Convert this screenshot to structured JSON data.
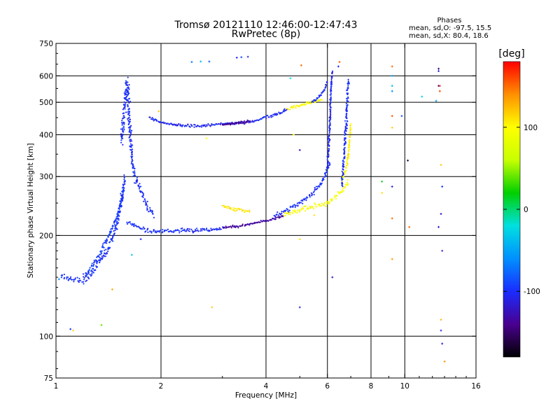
{
  "chart_data": {
    "type": "scatter",
    "title": "Tromsø 20121110 12:46:00-12:47:43",
    "subtitle": "RwPretec (8p)",
    "xlabel": "Frequency [MHz]",
    "ylabel": "Stationary phase Virtual Height [km]",
    "x_scale": "log",
    "y_scale": "log",
    "xlim": [
      1,
      16
    ],
    "ylim": [
      75,
      750
    ],
    "x_ticks": [
      1,
      2,
      4,
      6,
      8,
      10,
      16
    ],
    "x_tick_labels": [
      "1",
      "2",
      "4",
      "6",
      "8",
      "10",
      "16"
    ],
    "y_ticks": [
      75,
      100,
      200,
      300,
      400,
      500,
      600,
      750
    ],
    "y_tick_labels": [
      "75",
      "100",
      "200",
      "300",
      "400",
      "500",
      "600",
      "750"
    ],
    "x_grid": [
      2,
      4,
      6,
      8,
      10
    ],
    "y_grid": [
      100,
      200,
      300,
      400,
      500,
      600
    ],
    "grid": true,
    "stats_header": "Phases",
    "stats_lines": [
      "mean, sd,O: -97.5, 15.5",
      "mean, sd,X: 80.4, 18.6"
    ],
    "colorbar": {
      "label": "[deg]",
      "range": [
        -180,
        180
      ],
      "ticks": [
        100,
        0,
        -100
      ],
      "tick_labels": [
        "100",
        "0",
        "-100"
      ]
    },
    "color_stops": [
      "#000000",
      "#4a0090",
      "#1a2cff",
      "#0090ff",
      "#00e0e0",
      "#00d000",
      "#c8ff00",
      "#ffff00",
      "#ff9000",
      "#ff0000"
    ],
    "traces": [
      {
        "x": [
          1.03,
          1.07,
          1.15,
          1.2,
          1.25,
          1.3,
          1.35,
          1.4,
          1.45,
          1.5,
          1.53,
          1.56
        ],
        "y": [
          152,
          150,
          146,
          147,
          152,
          160,
          170,
          180,
          195,
          215,
          245,
          280
        ],
        "v": -100,
        "spread": 0.035
      },
      {
        "x": [
          1.2,
          1.25,
          1.3,
          1.35,
          1.4,
          1.45,
          1.5,
          1.55,
          1.58
        ],
        "y": [
          150,
          158,
          168,
          180,
          195,
          210,
          230,
          260,
          300
        ],
        "v": -95,
        "spread": 0.03
      },
      {
        "x": [
          1.54,
          1.56,
          1.58,
          1.6,
          1.62,
          1.65,
          1.7,
          1.8,
          1.9
        ],
        "y": [
          380,
          450,
          520,
          580,
          470,
          340,
          290,
          255,
          230
        ],
        "v": -100,
        "spread": 0.045
      },
      {
        "x": [
          1.6,
          1.7,
          1.8,
          1.9,
          2.0,
          2.2,
          2.4,
          2.6,
          2.8,
          3.0
        ],
        "y": [
          220,
          212,
          208,
          206,
          206,
          207,
          207,
          208,
          208,
          210
        ],
        "v": -100,
        "spread": 0.02
      },
      {
        "x": [
          3.0,
          3.3,
          3.6,
          3.9,
          4.2,
          4.5
        ],
        "y": [
          211,
          213,
          216,
          220,
          224,
          228
        ],
        "v": -135,
        "spread": 0.012
      },
      {
        "x": [
          4.2,
          4.6,
          5.0,
          5.4,
          5.8,
          6.1
        ],
        "y": [
          228,
          238,
          250,
          265,
          290,
          330
        ],
        "v": -100,
        "spread": 0.025
      },
      {
        "x": [
          6.0,
          6.05,
          6.1,
          6.12,
          6.15,
          6.2
        ],
        "y": [
          320,
          370,
          430,
          490,
          560,
          620
        ],
        "v": -105,
        "spread": 0.02
      },
      {
        "x": [
          4.5,
          5.0,
          5.5,
          6.0,
          6.3,
          6.6,
          6.9
        ],
        "y": [
          232,
          238,
          245,
          250,
          260,
          272,
          290
        ],
        "v": 95,
        "spread": 0.028
      },
      {
        "x": [
          6.6,
          6.8,
          6.9,
          6.95,
          7.0
        ],
        "y": [
          290,
          320,
          350,
          390,
          430
        ],
        "v": 105,
        "spread": 0.02
      },
      {
        "x": [
          1.85,
          2.0,
          2.2,
          2.4,
          2.6,
          2.8,
          3.0,
          3.2,
          3.5,
          3.8
        ],
        "y": [
          450,
          435,
          428,
          425,
          425,
          428,
          430,
          432,
          436,
          440
        ],
        "v": -105,
        "spread": 0.012
      },
      {
        "x": [
          3.0,
          3.2,
          3.4,
          3.6
        ],
        "y": [
          428,
          432,
          435,
          440
        ],
        "v": -140,
        "spread": 0.012
      },
      {
        "x": [
          3.8,
          4.1,
          4.4,
          4.6
        ],
        "y": [
          445,
          455,
          465,
          475
        ],
        "v": -100,
        "spread": 0.015
      },
      {
        "x": [
          4.6,
          5.0,
          5.4,
          5.8
        ],
        "y": [
          475,
          490,
          500,
          510
        ],
        "v": 100,
        "spread": 0.015
      },
      {
        "x": [
          5.4,
          5.7,
          5.9,
          6.0
        ],
        "y": [
          500,
          520,
          550,
          580
        ],
        "v": -100,
        "spread": 0.015
      },
      {
        "x": [
          3.0,
          3.2,
          3.4,
          3.6
        ],
        "y": [
          245,
          240,
          238,
          235
        ],
        "v": 110,
        "spread": 0.02
      },
      {
        "x": [
          6.6,
          6.7,
          6.8,
          6.9
        ],
        "y": [
          280,
          350,
          450,
          580
        ],
        "v": -100,
        "spread": 0.03
      }
    ],
    "points": [
      {
        "x": 2.45,
        "y": 660,
        "v": -70
      },
      {
        "x": 2.6,
        "y": 662,
        "v": -40
      },
      {
        "x": 2.75,
        "y": 662,
        "v": -80
      },
      {
        "x": 3.3,
        "y": 680,
        "v": -100
      },
      {
        "x": 3.4,
        "y": 682,
        "v": -90
      },
      {
        "x": 3.55,
        "y": 684,
        "v": -110
      },
      {
        "x": 5.05,
        "y": 645,
        "v": 150
      },
      {
        "x": 4.7,
        "y": 590,
        "v": -20
      },
      {
        "x": 6.5,
        "y": 660,
        "v": 155
      },
      {
        "x": 6.45,
        "y": 640,
        "v": -100
      },
      {
        "x": 5.0,
        "y": 360,
        "v": -130
      },
      {
        "x": 4.8,
        "y": 400,
        "v": 100
      },
      {
        "x": 2.7,
        "y": 390,
        "v": 100
      },
      {
        "x": 2.8,
        "y": 122,
        "v": 120
      },
      {
        "x": 5.0,
        "y": 122,
        "v": -110
      },
      {
        "x": 5.0,
        "y": 195,
        "v": 110
      },
      {
        "x": 5.5,
        "y": 230,
        "v": 110
      },
      {
        "x": 6.2,
        "y": 150,
        "v": -120
      },
      {
        "x": 1.1,
        "y": 105,
        "v": -100
      },
      {
        "x": 1.12,
        "y": 104,
        "v": 115
      },
      {
        "x": 1.35,
        "y": 108,
        "v": 40
      },
      {
        "x": 1.45,
        "y": 138,
        "v": 130
      },
      {
        "x": 1.65,
        "y": 175,
        "v": -30
      },
      {
        "x": 1.75,
        "y": 195,
        "v": -100
      },
      {
        "x": 1.97,
        "y": 470,
        "v": 120
      },
      {
        "x": 1.02,
        "y": 148,
        "v": -60
      },
      {
        "x": 1.0,
        "y": 150,
        "v": -30
      },
      {
        "x": 8.6,
        "y": 290,
        "v": 20
      },
      {
        "x": 8.6,
        "y": 268,
        "v": 110
      },
      {
        "x": 9.2,
        "y": 640,
        "v": 150
      },
      {
        "x": 9.2,
        "y": 600,
        "v": -50
      },
      {
        "x": 9.2,
        "y": 560,
        "v": -40
      },
      {
        "x": 9.2,
        "y": 540,
        "v": -60
      },
      {
        "x": 9.2,
        "y": 455,
        "v": 160
      },
      {
        "x": 9.2,
        "y": 420,
        "v": 120
      },
      {
        "x": 9.2,
        "y": 280,
        "v": -110
      },
      {
        "x": 9.2,
        "y": 225,
        "v": 150
      },
      {
        "x": 9.2,
        "y": 170,
        "v": 140
      },
      {
        "x": 9.8,
        "y": 455,
        "v": -90
      },
      {
        "x": 10.2,
        "y": 335,
        "v": -160
      },
      {
        "x": 10.3,
        "y": 212,
        "v": 150
      },
      {
        "x": 11.2,
        "y": 520,
        "v": -30
      },
      {
        "x": 12.5,
        "y": 630,
        "v": -150
      },
      {
        "x": 12.5,
        "y": 620,
        "v": -110
      },
      {
        "x": 12.5,
        "y": 560,
        "v": -130
      },
      {
        "x": 12.6,
        "y": 560,
        "v": 170
      },
      {
        "x": 12.6,
        "y": 540,
        "v": 160
      },
      {
        "x": 12.7,
        "y": 325,
        "v": 120
      },
      {
        "x": 12.8,
        "y": 280,
        "v": -100
      },
      {
        "x": 12.7,
        "y": 232,
        "v": -120
      },
      {
        "x": 12.5,
        "y": 212,
        "v": -120
      },
      {
        "x": 12.8,
        "y": 180,
        "v": -110
      },
      {
        "x": 12.7,
        "y": 112,
        "v": 130
      },
      {
        "x": 12.7,
        "y": 104,
        "v": -110
      },
      {
        "x": 12.8,
        "y": 95,
        "v": -110
      },
      {
        "x": 13.0,
        "y": 84,
        "v": 140
      },
      {
        "x": 12.3,
        "y": 505,
        "v": -50
      }
    ]
  }
}
